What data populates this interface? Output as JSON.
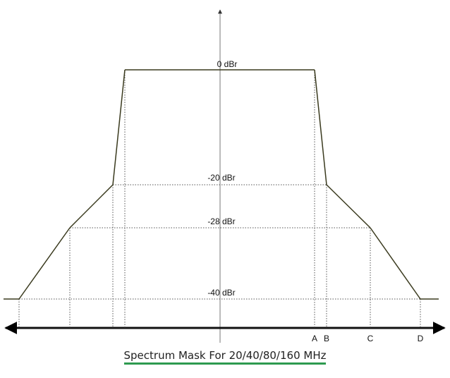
{
  "diagram": {
    "caption": "Spectrum Mask For 20/40/80/160 MHz",
    "caption_underline_color": "#2e9a4f",
    "line_color": "#3a3a1e",
    "levels": [
      {
        "label": "0 dBr",
        "value": 0
      },
      {
        "label": "-20 dBr",
        "value": -20
      },
      {
        "label": "-28 dBr",
        "value": -28
      },
      {
        "label": "-40 dBr",
        "value": -40
      }
    ],
    "frequency_markers": [
      "A",
      "B",
      "C",
      "D"
    ]
  }
}
